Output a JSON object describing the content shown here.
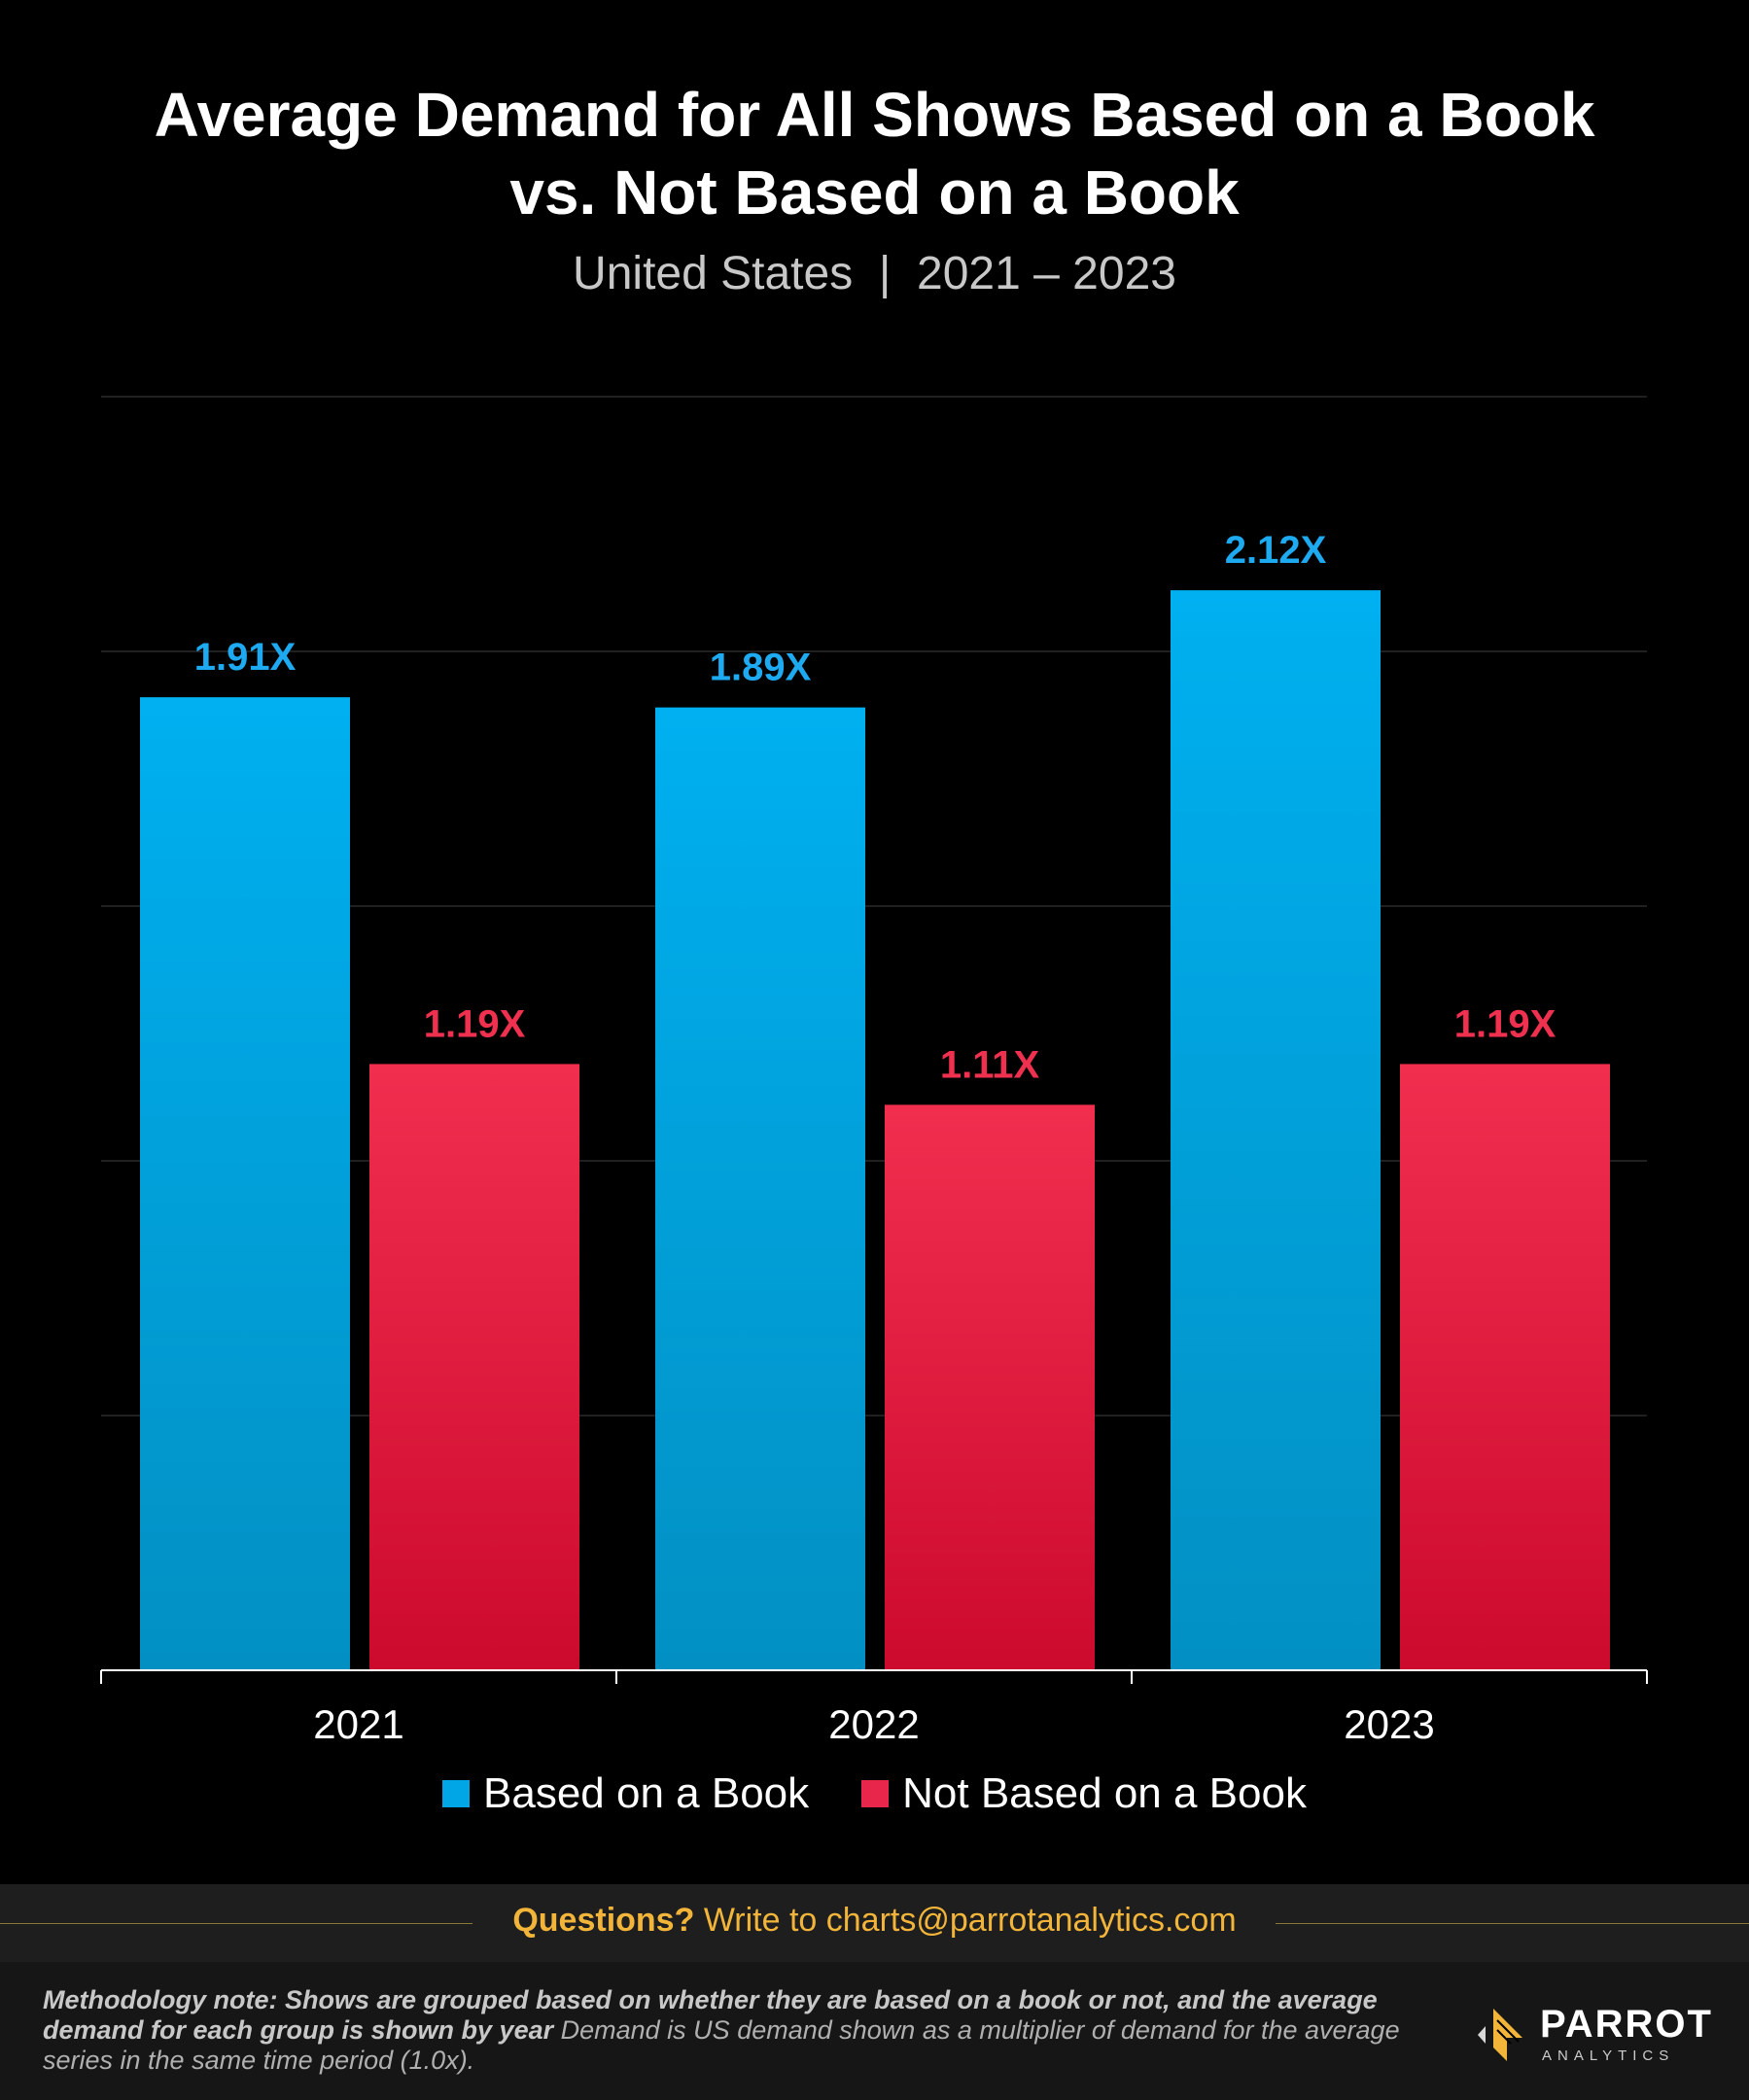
{
  "header": {
    "title_line1": "Average Demand for All Shows Based on a Book",
    "title_line2": "vs. Not Based on a Book",
    "subtitle": "United States  |  2021 – 2023"
  },
  "chart_data": {
    "type": "bar",
    "title": "Average Demand for All Shows Based on a Book vs. Not Based on a Book",
    "subtitle": "United States | 2021 – 2023",
    "categories": [
      "2021",
      "2022",
      "2023"
    ],
    "series": [
      {
        "name": "Based on a Book",
        "values": [
          1.91,
          1.89,
          2.12
        ],
        "labels": [
          "1.91X",
          "1.89X",
          "2.12X"
        ],
        "color": "#00aaea"
      },
      {
        "name": "Not Based on a Book",
        "values": [
          1.19,
          1.11,
          1.19
        ],
        "labels": [
          "1.19X",
          "1.11X",
          "1.19X"
        ],
        "color": "#e8254a"
      }
    ],
    "ylim": [
      0,
      2.5
    ],
    "grid": true,
    "legend": "bottom-center"
  },
  "colors": {
    "blue_top": "#00b0f0",
    "blue_bottom": "#0290c3",
    "red_top": "#f22e4f",
    "red_bottom": "#cc0a2e",
    "label_blue": "#1eaaf0",
    "label_red": "#f0304f",
    "accent_gold": "#f2b53a"
  },
  "footer": {
    "questions_bold": "Questions?",
    "questions_rest": " Write to charts@parrotanalytics.com",
    "method_bold": "Methodology note: Shows are grouped based on whether they are based on a book or not, and the average demand for each group is shown by year",
    "method_rest": "  Demand is US demand shown as a multiplier of demand for the average series in the same time period (1.0x).",
    "logo_word": "PARROT",
    "logo_sub": "ANALYTICS"
  }
}
